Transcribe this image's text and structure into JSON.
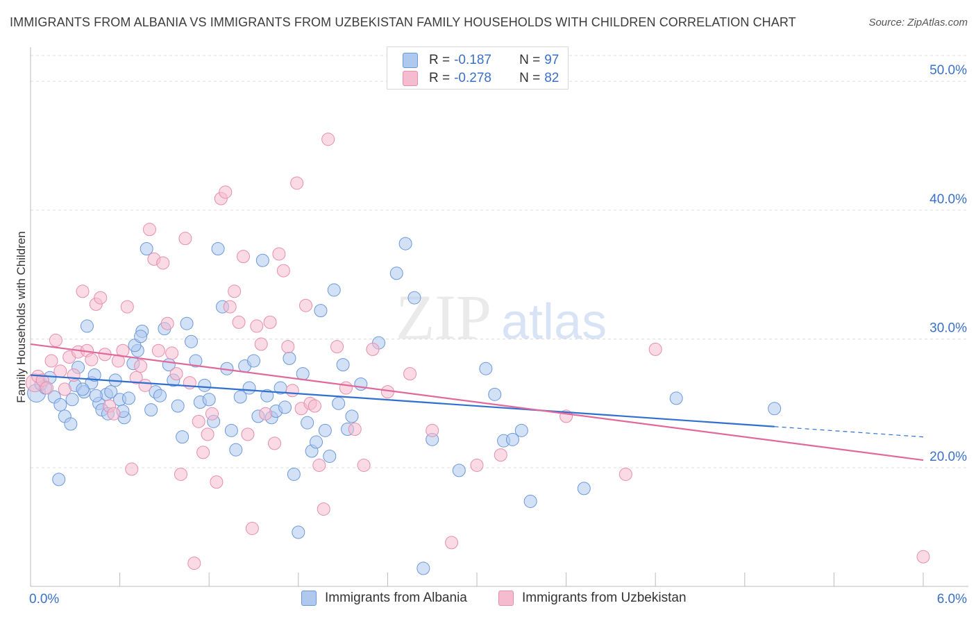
{
  "title": "IMMIGRANTS FROM ALBANIA VS IMMIGRANTS FROM UZBEKISTAN FAMILY HOUSEHOLDS WITH CHILDREN CORRELATION CHART",
  "source": "Source: ZipAtlas.com",
  "watermark": {
    "zip": "ZIP",
    "atlas": "atlas"
  },
  "colors": {
    "albania_fill": "#aec8ee",
    "albania_stroke": "#6a98dc",
    "albania_line": "#2f6fd0",
    "uzbek_fill": "#f5bcd0",
    "uzbek_stroke": "#e88cad",
    "uzbek_line": "#e0699a",
    "tick_label": "#3a70c8",
    "grid": "#dddddd"
  },
  "legend_stats": [
    {
      "r_label": "R = ",
      "r_value": "-0.187",
      "n_label": "N = ",
      "n_value": "97"
    },
    {
      "r_label": "R = ",
      "r_value": "-0.278",
      "n_label": "N = ",
      "n_value": "82"
    }
  ],
  "chart_data": {
    "type": "scatter",
    "title": "IMMIGRANTS FROM ALBANIA VS IMMIGRANTS FROM UZBEKISTAN FAMILY HOUSEHOLDS WITH CHILDREN CORRELATION CHART",
    "xlabel": "",
    "ylabel": "Family Households with Children",
    "xlim": [
      0,
      6
    ],
    "ylim": [
      10.8,
      52
    ],
    "x_tick_labels": [
      {
        "value": 0,
        "label": "0.0%"
      },
      {
        "value": 6,
        "label": "6.0%"
      }
    ],
    "y_tick_labels": [
      {
        "value": 20,
        "label": "20.0%"
      },
      {
        "value": 30,
        "label": "30.0%"
      },
      {
        "value": 40,
        "label": "40.0%"
      },
      {
        "value": 50,
        "label": "50.0%"
      }
    ],
    "series": [
      {
        "name": "Immigrants from Albania",
        "trend": {
          "x0": 0.0,
          "y0": 27.2,
          "x1": 5.0,
          "y1": 23.2,
          "dash_to_x": 6.0,
          "dash_to_y": 22.4
        },
        "points": [
          [
            0.04,
            25.8
          ],
          [
            0.07,
            26.5
          ],
          [
            0.1,
            26.2
          ],
          [
            0.13,
            27.0
          ],
          [
            0.16,
            25.5
          ],
          [
            0.2,
            24.9
          ],
          [
            0.23,
            24.0
          ],
          [
            0.27,
            23.4
          ],
          [
            0.3,
            26.4
          ],
          [
            0.32,
            27.8
          ],
          [
            0.36,
            25.9
          ],
          [
            0.38,
            31.0
          ],
          [
            0.41,
            26.6
          ],
          [
            0.43,
            27.2
          ],
          [
            0.46,
            25.0
          ],
          [
            0.48,
            24.5
          ],
          [
            0.51,
            25.7
          ],
          [
            0.54,
            25.9
          ],
          [
            0.57,
            26.8
          ],
          [
            0.6,
            25.3
          ],
          [
            0.63,
            23.9
          ],
          [
            0.66,
            25.4
          ],
          [
            0.69,
            28.1
          ],
          [
            0.72,
            29.1
          ],
          [
            0.75,
            30.6
          ],
          [
            0.78,
            37.0
          ],
          [
            0.81,
            24.5
          ],
          [
            0.84,
            25.9
          ],
          [
            0.87,
            25.6
          ],
          [
            0.9,
            30.8
          ],
          [
            0.93,
            28.0
          ],
          [
            0.96,
            26.8
          ],
          [
            0.99,
            24.8
          ],
          [
            1.02,
            22.4
          ],
          [
            1.05,
            31.2
          ],
          [
            1.08,
            29.8
          ],
          [
            1.11,
            28.3
          ],
          [
            1.14,
            25.1
          ],
          [
            1.17,
            26.4
          ],
          [
            1.2,
            25.3
          ],
          [
            1.23,
            23.6
          ],
          [
            1.26,
            37.0
          ],
          [
            1.29,
            32.5
          ],
          [
            1.32,
            27.7
          ],
          [
            1.35,
            22.9
          ],
          [
            1.38,
            21.4
          ],
          [
            1.41,
            25.5
          ],
          [
            1.44,
            27.9
          ],
          [
            1.47,
            26.2
          ],
          [
            1.5,
            28.3
          ],
          [
            1.53,
            24.0
          ],
          [
            1.56,
            36.1
          ],
          [
            1.59,
            25.6
          ],
          [
            1.62,
            23.9
          ],
          [
            1.65,
            24.4
          ],
          [
            1.68,
            26.2
          ],
          [
            1.71,
            24.7
          ],
          [
            1.74,
            28.5
          ],
          [
            1.77,
            19.5
          ],
          [
            1.8,
            15.0
          ],
          [
            1.83,
            27.3
          ],
          [
            1.86,
            23.5
          ],
          [
            1.89,
            21.3
          ],
          [
            1.92,
            22.0
          ],
          [
            1.95,
            32.2
          ],
          [
            1.98,
            22.9
          ],
          [
            2.01,
            20.9
          ],
          [
            2.04,
            33.8
          ],
          [
            2.07,
            25.0
          ],
          [
            2.1,
            28.0
          ],
          [
            2.13,
            23.0
          ],
          [
            2.16,
            24.0
          ],
          [
            2.22,
            26.5
          ],
          [
            2.34,
            29.7
          ],
          [
            2.46,
            35.1
          ],
          [
            2.52,
            37.4
          ],
          [
            2.58,
            33.2
          ],
          [
            2.64,
            12.2
          ],
          [
            2.7,
            22.2
          ],
          [
            2.88,
            19.8
          ],
          [
            3.06,
            27.7
          ],
          [
            3.12,
            25.7
          ],
          [
            3.18,
            22.1
          ],
          [
            3.24,
            22.2
          ],
          [
            3.3,
            22.9
          ],
          [
            3.36,
            17.4
          ],
          [
            3.72,
            18.4
          ],
          [
            4.34,
            25.4
          ],
          [
            5.0,
            24.6
          ],
          [
            0.19,
            19.1
          ],
          [
            0.28,
            25.3
          ],
          [
            0.35,
            26.1
          ],
          [
            0.44,
            25.6
          ],
          [
            0.52,
            24.2
          ],
          [
            0.62,
            24.4
          ],
          [
            0.7,
            29.5
          ],
          [
            0.74,
            30.2
          ]
        ]
      },
      {
        "name": "Immigrants from Uzbekistan",
        "trend": {
          "x0": 0.0,
          "y0": 29.6,
          "x1": 6.0,
          "y1": 20.6
        },
        "points": [
          [
            0.03,
            26.6
          ],
          [
            0.05,
            27.1
          ],
          [
            0.08,
            26.8
          ],
          [
            0.11,
            26.2
          ],
          [
            0.14,
            28.3
          ],
          [
            0.17,
            29.9
          ],
          [
            0.2,
            27.5
          ],
          [
            0.23,
            26.1
          ],
          [
            0.26,
            28.6
          ],
          [
            0.29,
            27.2
          ],
          [
            0.32,
            29.0
          ],
          [
            0.35,
            33.7
          ],
          [
            0.38,
            29.1
          ],
          [
            0.41,
            28.4
          ],
          [
            0.44,
            32.7
          ],
          [
            0.47,
            33.2
          ],
          [
            0.5,
            28.8
          ],
          [
            0.53,
            24.8
          ],
          [
            0.56,
            24.2
          ],
          [
            0.59,
            28.3
          ],
          [
            0.62,
            29.1
          ],
          [
            0.65,
            32.5
          ],
          [
            0.68,
            19.9
          ],
          [
            0.71,
            27.0
          ],
          [
            0.74,
            27.9
          ],
          [
            0.77,
            26.4
          ],
          [
            0.8,
            38.5
          ],
          [
            0.83,
            36.2
          ],
          [
            0.86,
            29.1
          ],
          [
            0.89,
            35.9
          ],
          [
            0.92,
            31.2
          ],
          [
            0.95,
            28.9
          ],
          [
            0.98,
            27.3
          ],
          [
            1.01,
            19.5
          ],
          [
            1.04,
            37.8
          ],
          [
            1.07,
            26.6
          ],
          [
            1.1,
            12.6
          ],
          [
            1.13,
            23.6
          ],
          [
            1.16,
            21.2
          ],
          [
            1.19,
            22.6
          ],
          [
            1.22,
            24.2
          ],
          [
            1.25,
            18.9
          ],
          [
            1.28,
            40.9
          ],
          [
            1.31,
            41.4
          ],
          [
            1.34,
            32.5
          ],
          [
            1.37,
            33.7
          ],
          [
            1.4,
            31.3
          ],
          [
            1.43,
            36.4
          ],
          [
            1.46,
            22.6
          ],
          [
            1.49,
            15.3
          ],
          [
            1.52,
            31.0
          ],
          [
            1.55,
            29.6
          ],
          [
            1.58,
            24.2
          ],
          [
            1.61,
            31.3
          ],
          [
            1.64,
            21.9
          ],
          [
            1.67,
            36.6
          ],
          [
            1.7,
            35.3
          ],
          [
            1.73,
            29.4
          ],
          [
            1.76,
            26.0
          ],
          [
            1.79,
            42.1
          ],
          [
            1.82,
            24.6
          ],
          [
            1.85,
            32.6
          ],
          [
            1.88,
            25.0
          ],
          [
            1.91,
            24.8
          ],
          [
            1.94,
            20.2
          ],
          [
            1.97,
            16.8
          ],
          [
            2.0,
            45.5
          ],
          [
            2.06,
            29.4
          ],
          [
            2.12,
            26.2
          ],
          [
            2.18,
            23.0
          ],
          [
            2.24,
            20.2
          ],
          [
            2.3,
            29.2
          ],
          [
            2.4,
            25.9
          ],
          [
            2.55,
            27.3
          ],
          [
            2.7,
            22.9
          ],
          [
            2.83,
            14.2
          ],
          [
            3.0,
            20.2
          ],
          [
            3.16,
            21.0
          ],
          [
            3.6,
            24.0
          ],
          [
            4.0,
            19.5
          ],
          [
            4.2,
            29.2
          ],
          [
            6.0,
            13.1
          ]
        ]
      }
    ]
  }
}
